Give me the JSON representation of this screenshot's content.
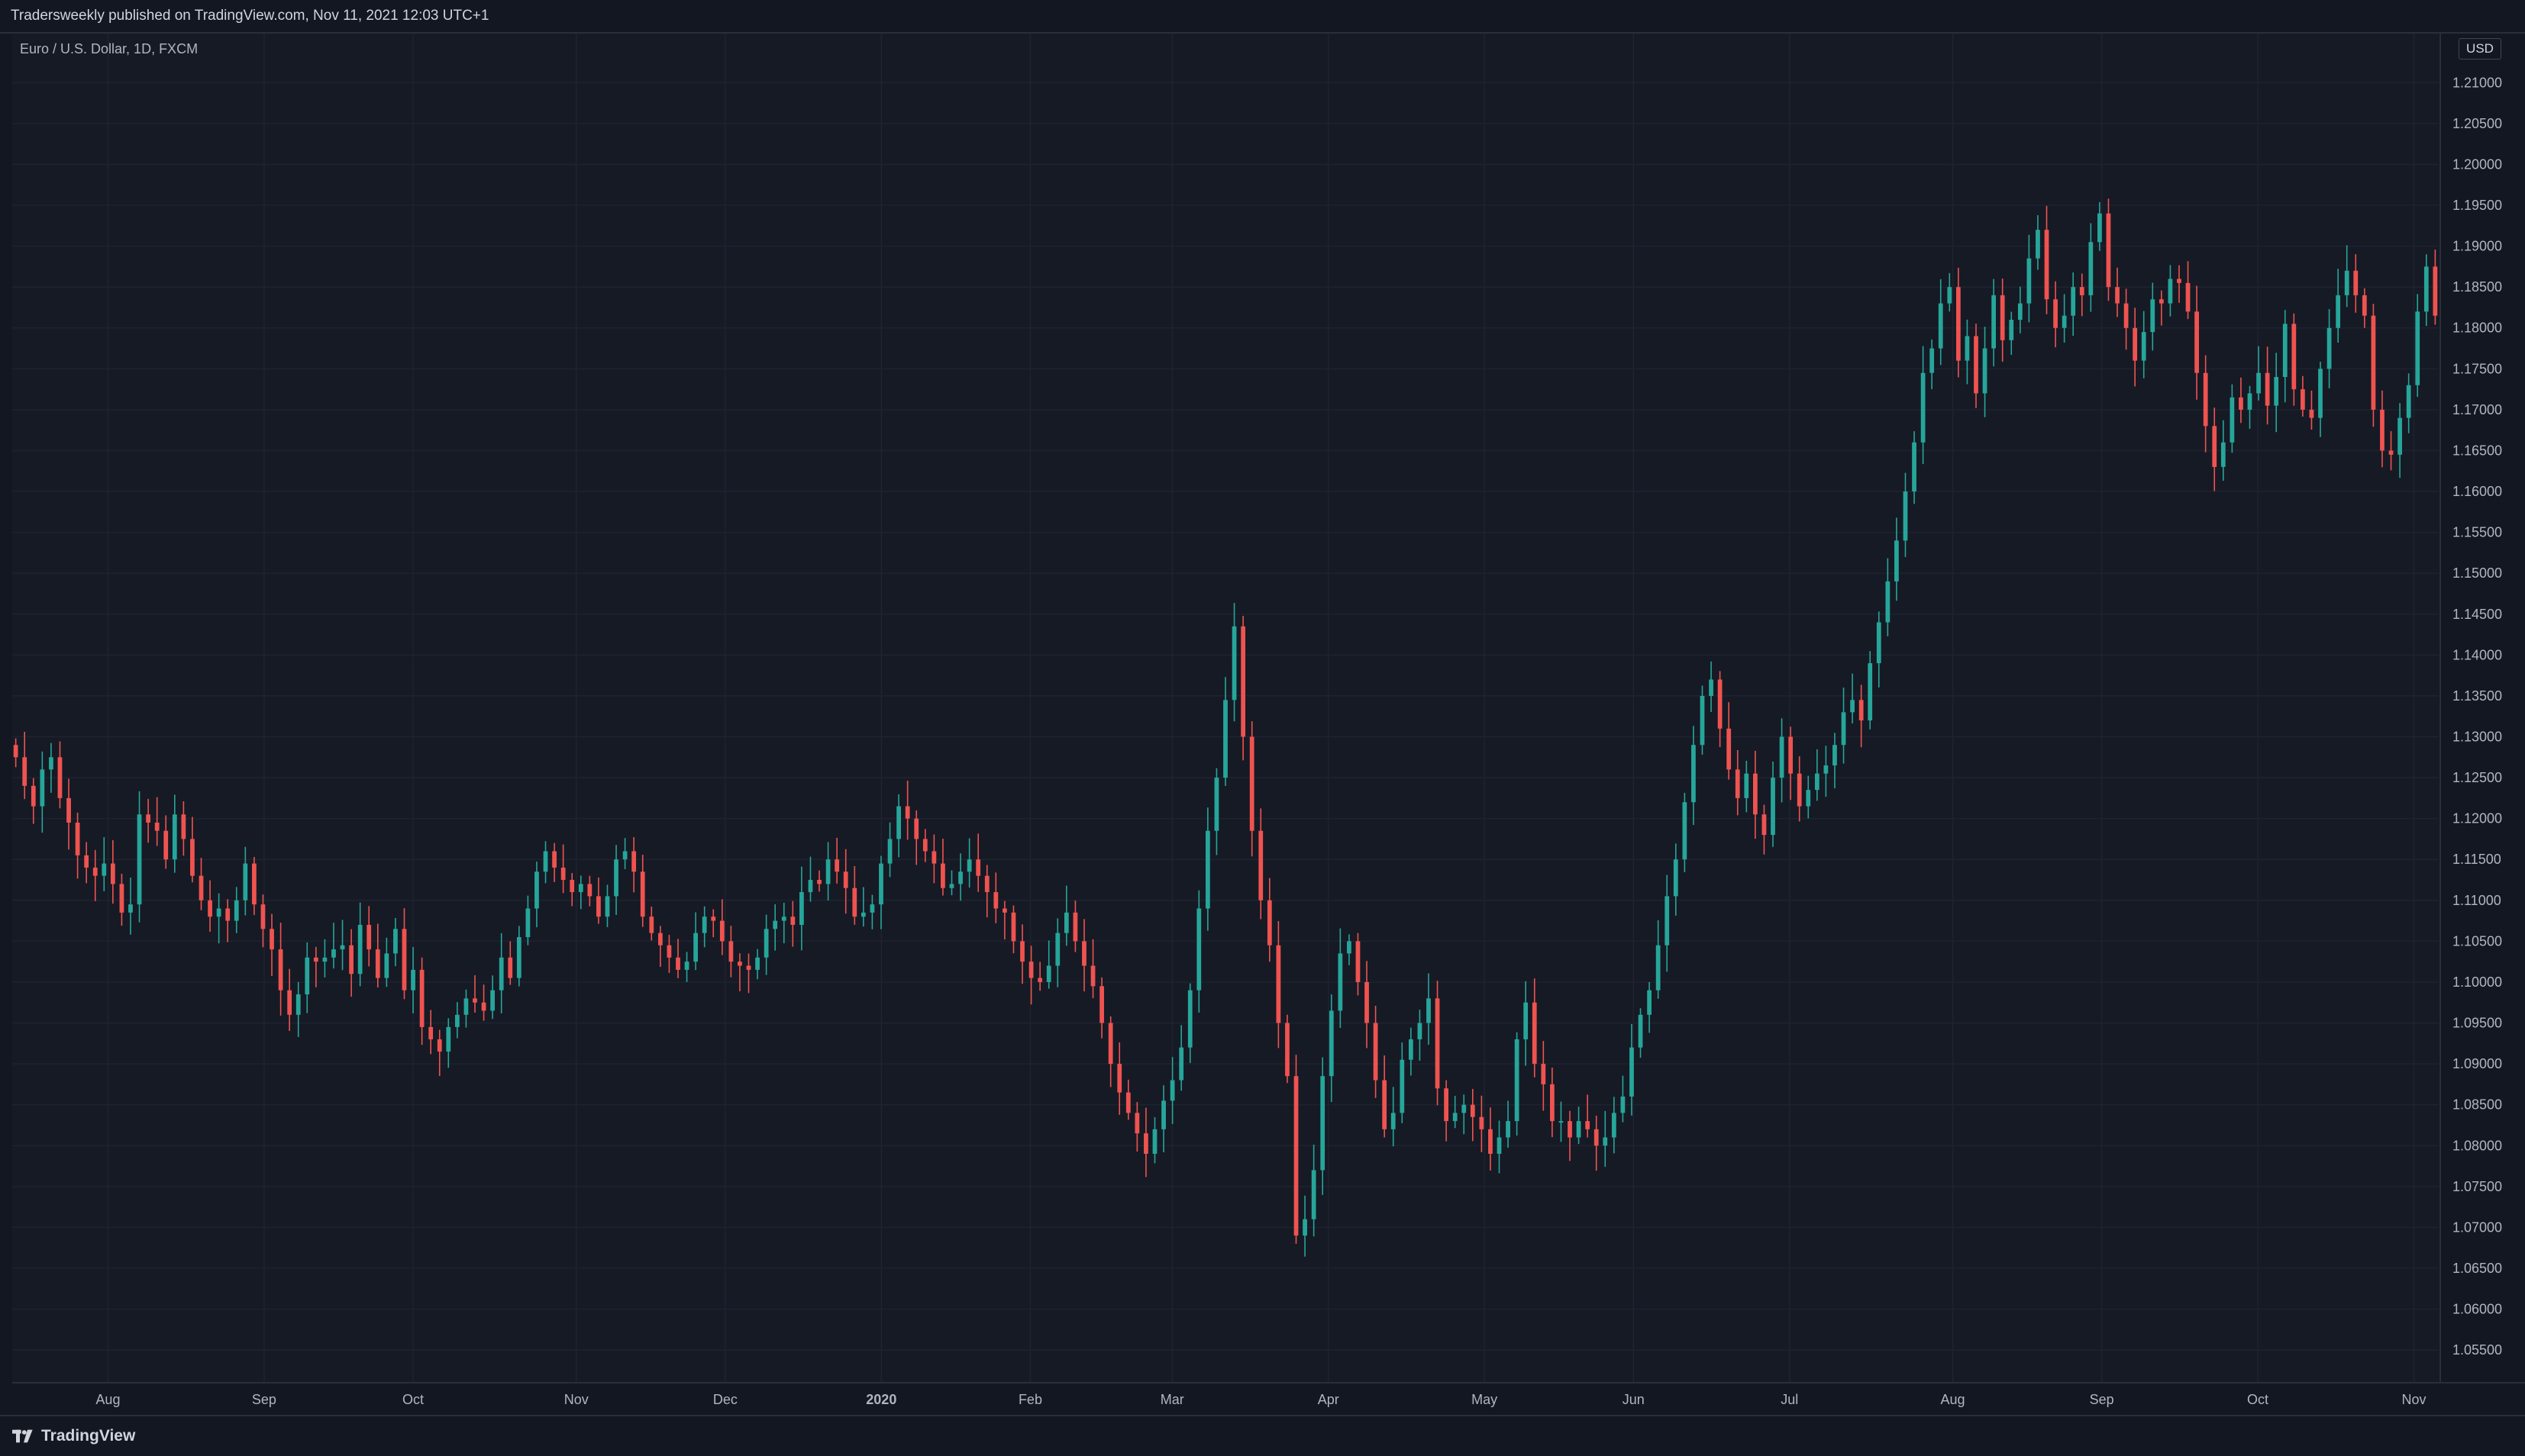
{
  "header": {
    "published_text": "Tradersweekly published on TradingView.com, Nov 11, 2021 12:03 UTC+1"
  },
  "symbol": {
    "label": "Euro / U.S. Dollar, 1D, FXCM"
  },
  "price_axis": {
    "currency": "USD"
  },
  "footer": {
    "brand": "TradingView"
  },
  "colors": {
    "up": "#26a69a",
    "down": "#ef5350",
    "grid": "#1f2330",
    "text": "#b2b5be",
    "background": "#131722"
  },
  "chart_data": {
    "type": "candlestick",
    "ylim": [
      1.051,
      1.216
    ],
    "y_ticks": [
      1.055,
      1.06,
      1.065,
      1.07,
      1.075,
      1.08,
      1.085,
      1.09,
      1.095,
      1.1,
      1.105,
      1.11,
      1.115,
      1.12,
      1.125,
      1.13,
      1.135,
      1.14,
      1.145,
      1.15,
      1.155,
      1.16,
      1.165,
      1.17,
      1.175,
      1.18,
      1.185,
      1.19,
      1.195,
      1.2,
      1.205,
      1.21
    ],
    "y_tick_labels": [
      "1.05500",
      "1.06000",
      "1.06500",
      "1.07000",
      "1.07500",
      "1.08000",
      "1.08500",
      "1.09000",
      "1.09500",
      "1.10000",
      "1.10500",
      "1.11000",
      "1.11500",
      "1.12000",
      "1.12500",
      "1.13000",
      "1.13500",
      "1.14000",
      "1.14500",
      "1.15000",
      "1.15500",
      "1.16000",
      "1.16500",
      "1.17000",
      "1.17500",
      "1.18000",
      "1.18500",
      "1.19000",
      "1.19500",
      "1.20000",
      "1.20500",
      "1.21000"
    ],
    "x_labels": [
      {
        "label": "Aug",
        "bar": 13
      },
      {
        "label": "Sep",
        "bar": 35
      },
      {
        "label": "Oct",
        "bar": 56
      },
      {
        "label": "Nov",
        "bar": 79
      },
      {
        "label": "Dec",
        "bar": 100
      },
      {
        "label": "2020",
        "bar": 122
      },
      {
        "label": "Feb",
        "bar": 143
      },
      {
        "label": "Mar",
        "bar": 163
      },
      {
        "label": "Apr",
        "bar": 185
      },
      {
        "label": "May",
        "bar": 207
      },
      {
        "label": "Jun",
        "bar": 228
      },
      {
        "label": "Jul",
        "bar": 250
      },
      {
        "label": "Aug",
        "bar": 273
      },
      {
        "label": "Sep",
        "bar": 294
      },
      {
        "label": "Oct",
        "bar": 316
      },
      {
        "label": "Nov",
        "bar": 338
      }
    ],
    "total_bars": 342,
    "closes": [
      1.1275,
      1.124,
      1.1215,
      1.126,
      1.1275,
      1.1225,
      1.1195,
      1.1155,
      1.114,
      1.113,
      1.1145,
      1.112,
      1.1085,
      1.1095,
      1.1205,
      1.1195,
      1.1185,
      1.115,
      1.1205,
      1.1175,
      1.113,
      1.11,
      1.108,
      1.109,
      1.1075,
      1.11,
      1.1145,
      1.1095,
      1.1065,
      1.104,
      1.099,
      1.096,
      1.0985,
      1.103,
      1.1025,
      1.103,
      1.104,
      1.1045,
      1.101,
      1.107,
      1.104,
      1.1005,
      1.1035,
      1.1065,
      1.099,
      1.1015,
      1.0945,
      1.093,
      1.0915,
      1.0945,
      1.096,
      1.098,
      1.0975,
      1.0965,
      1.099,
      1.103,
      1.1005,
      1.1055,
      1.109,
      1.1135,
      1.116,
      1.114,
      1.1125,
      1.111,
      1.112,
      1.1105,
      1.108,
      1.1105,
      1.115,
      1.116,
      1.1135,
      1.108,
      1.106,
      1.1045,
      1.103,
      1.1015,
      1.1025,
      1.106,
      1.108,
      1.1075,
      1.105,
      1.1025,
      1.102,
      1.1015,
      1.103,
      1.1065,
      1.1075,
      1.108,
      1.107,
      1.111,
      1.1125,
      1.112,
      1.115,
      1.1135,
      1.1115,
      1.108,
      1.1085,
      1.1095,
      1.1145,
      1.1175,
      1.1215,
      1.12,
      1.1175,
      1.116,
      1.1145,
      1.1115,
      1.112,
      1.1135,
      1.115,
      1.113,
      1.111,
      1.109,
      1.1085,
      1.105,
      1.1025,
      1.1005,
      1.1,
      1.102,
      1.106,
      1.1085,
      1.105,
      1.102,
      1.0995,
      1.095,
      1.09,
      1.0865,
      1.084,
      1.0815,
      1.079,
      1.082,
      1.0855,
      1.088,
      1.092,
      1.099,
      1.109,
      1.1185,
      1.125,
      1.1345,
      1.1435,
      1.13,
      1.1185,
      1.11,
      1.1045,
      1.095,
      1.0885,
      1.069,
      1.071,
      1.077,
      1.0885,
      1.0965,
      1.1035,
      1.105,
      1.1,
      1.095,
      1.088,
      1.082,
      1.084,
      1.0905,
      1.093,
      1.095,
      1.098,
      1.087,
      1.083,
      1.084,
      1.085,
      1.0835,
      1.082,
      1.079,
      1.081,
      1.083,
      1.093,
      1.0975,
      1.09,
      1.0875,
      1.083,
      1.083,
      1.081,
      1.083,
      1.082,
      1.08,
      1.081,
      1.084,
      1.086,
      1.092,
      1.096,
      1.099,
      1.1045,
      1.1105,
      1.115,
      1.122,
      1.129,
      1.135,
      1.137,
      1.131,
      1.126,
      1.1225,
      1.1255,
      1.1205,
      1.118,
      1.125,
      1.13,
      1.1255,
      1.1215,
      1.1235,
      1.1255,
      1.1265,
      1.129,
      1.133,
      1.1345,
      1.132,
      1.139,
      1.144,
      1.149,
      1.154,
      1.16,
      1.166,
      1.1745,
      1.1775,
      1.183,
      1.185,
      1.176,
      1.179,
      1.172,
      1.1775,
      1.184,
      1.1785,
      1.181,
      1.183,
      1.1885,
      1.192,
      1.1835,
      1.18,
      1.1815,
      1.185,
      1.184,
      1.1905,
      1.194,
      1.185,
      1.183,
      1.18,
      1.176,
      1.1795,
      1.1835,
      1.183,
      1.186,
      1.1855,
      1.182,
      1.1745,
      1.168,
      1.163,
      1.166,
      1.1715,
      1.17,
      1.172,
      1.1745,
      1.1705,
      1.174,
      1.1805,
      1.1725,
      1.17,
      1.169,
      1.175,
      1.18,
      1.184,
      1.187,
      1.184,
      1.1815,
      1.17,
      1.165,
      1.1645,
      1.169,
      1.173,
      1.182,
      1.1875,
      1.1815
    ],
    "note_candles": []
  }
}
